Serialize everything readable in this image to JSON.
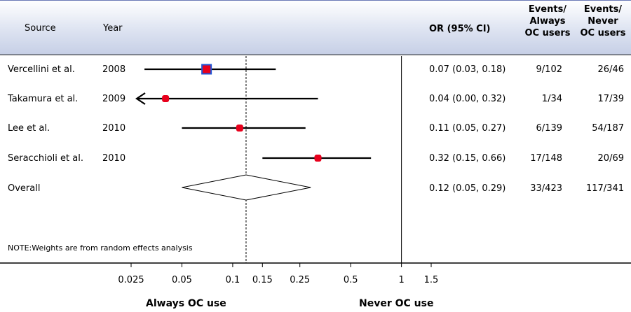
{
  "header": {
    "source": "Source",
    "year": "Year",
    "or": "OR (95% CI)",
    "events_always": [
      "Events/",
      "Always",
      "OC users"
    ],
    "events_never": [
      "Events/",
      "Never",
      "OC users"
    ]
  },
  "note": "NOTE:Weights are from random effects analysis",
  "directions": {
    "left": "Always OC use",
    "right": "Never OC use"
  },
  "colors": {
    "point": "#e8001c",
    "point_border": "#1f55d6",
    "line": "#000000",
    "header_bg": "#c6cfe6"
  },
  "chart_data": {
    "type": "forest",
    "x_scale": "log",
    "xlim": [
      0.025,
      1.5
    ],
    "null_line": 1,
    "summary_line": 0.12,
    "x_ticks": [
      {
        "value": 0.025,
        "label": "0.025"
      },
      {
        "value": 0.05,
        "label": "0.05"
      },
      {
        "value": 0.1,
        "label": "0.1"
      },
      {
        "value": 0.15,
        "label": "0.15"
      },
      {
        "value": 0.25,
        "label": "0.25"
      },
      {
        "value": 0.5,
        "label": "0.5"
      },
      {
        "value": 1,
        "label": "1"
      },
      {
        "value": 1.5,
        "label": "1.5"
      }
    ],
    "studies": [
      {
        "source": "Vercellini et al.",
        "year": "2008",
        "or": 0.07,
        "lo": 0.03,
        "hi": 0.18,
        "or_text": "0.07 (0.03, 0.18)",
        "events_always": "9/102",
        "events_never": "26/46",
        "arrow_left": false
      },
      {
        "source": "Takamura et al.",
        "year": "2009",
        "or": 0.04,
        "lo": 0.0,
        "hi": 0.32,
        "or_text": "0.04 (0.00, 0.32)",
        "events_always": "1/34",
        "events_never": "17/39",
        "arrow_left": true
      },
      {
        "source": "Lee et al.",
        "year": "2010",
        "or": 0.11,
        "lo": 0.05,
        "hi": 0.27,
        "or_text": "0.11 (0.05, 0.27)",
        "events_always": "6/139",
        "events_never": "54/187",
        "arrow_left": false
      },
      {
        "source": "Seracchioli et al.",
        "year": "2010",
        "or": 0.32,
        "lo": 0.15,
        "hi": 0.66,
        "or_text": "0.32 (0.15, 0.66)",
        "events_always": "17/148",
        "events_never": "20/69",
        "arrow_left": false
      }
    ],
    "overall": {
      "source": "Overall",
      "or": 0.12,
      "lo": 0.05,
      "hi": 0.29,
      "or_text": "0.12 (0.05, 0.29)",
      "events_always": "33/423",
      "events_never": "117/341"
    }
  }
}
